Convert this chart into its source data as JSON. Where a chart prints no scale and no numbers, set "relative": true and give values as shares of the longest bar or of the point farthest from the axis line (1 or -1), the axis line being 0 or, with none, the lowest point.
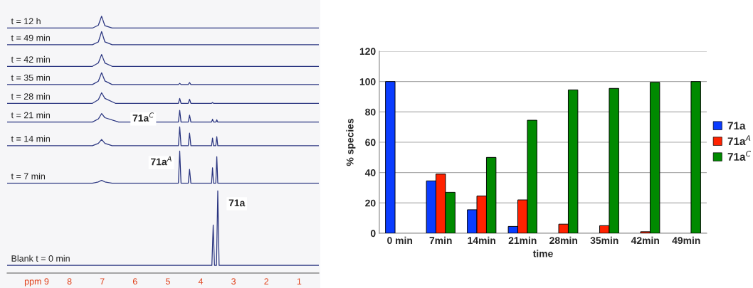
{
  "chart_data": [
    {
      "type": "line",
      "relative": true,
      "xlim": [
        9.9,
        0.4
      ],
      "tick_labels": "x",
      "xticks": [
        {
          "value": 9,
          "label": "ppm 9"
        },
        8,
        7,
        6,
        5,
        4,
        3,
        2,
        1
      ],
      "annotations": [
        {
          "text": "71a$^{C}$",
          "x": 5.75,
          "y": 0.6
        },
        {
          "text": "71a$^{A}$",
          "x": 5.2,
          "y": 0.43
        },
        {
          "text": "71a",
          "x": 2.9,
          "y": 0.27
        }
      ],
      "series": [
        {
          "name": "t = 12 h",
          "color": "#2a3580",
          "x": [
            9.9,
            7.3,
            7.12,
            7.02,
            6.92,
            6.7,
            0.4
          ],
          "values": [
            0.954,
            0.954,
            0.965,
            1.0,
            0.963,
            0.954,
            0.954
          ]
        },
        {
          "name": "t = 49 min",
          "color": "#2a3580",
          "x": [
            9.9,
            7.3,
            7.12,
            7.02,
            6.92,
            6.7,
            0.4
          ],
          "values": [
            0.889,
            0.889,
            0.9,
            0.94,
            0.9,
            0.889,
            0.889
          ]
        },
        {
          "name": "t = 42 min",
          "color": "#2a3580",
          "x": [
            9.9,
            7.3,
            7.12,
            7.02,
            6.92,
            6.7,
            0.4
          ],
          "values": [
            0.805,
            0.805,
            0.818,
            0.851,
            0.818,
            0.805,
            0.805
          ]
        },
        {
          "name": "t = 35 min",
          "color": "#2a3580",
          "x": [
            9.9,
            7.3,
            7.12,
            7.02,
            6.92,
            6.7,
            4.68,
            4.64,
            4.6,
            4.38,
            4.34,
            4.3,
            0.4
          ],
          "values": [
            0.734,
            0.734,
            0.747,
            0.78,
            0.748,
            0.734,
            0.734,
            0.739,
            0.734,
            0.734,
            0.742,
            0.734,
            0.734
          ]
        },
        {
          "name": "t = 28 min",
          "color": "#2a3580",
          "x": [
            9.9,
            7.3,
            7.12,
            7.02,
            6.92,
            6.6,
            4.68,
            4.64,
            4.6,
            4.38,
            4.34,
            4.3,
            3.67,
            3.64,
            3.61,
            0.4
          ],
          "values": [
            0.661,
            0.661,
            0.675,
            0.702,
            0.68,
            0.661,
            0.661,
            0.68,
            0.661,
            0.661,
            0.677,
            0.661,
            0.661,
            0.664,
            0.661,
            0.661
          ]
        },
        {
          "name": "t = 21 min",
          "color": "#2a3580",
          "x": [
            9.9,
            7.3,
            7.12,
            7.02,
            6.92,
            6.5,
            4.68,
            4.64,
            4.6,
            4.38,
            4.34,
            4.3,
            3.67,
            3.64,
            3.61,
            3.54,
            3.51,
            3.48,
            0.4
          ],
          "values": [
            0.588,
            0.588,
            0.6,
            0.621,
            0.605,
            0.588,
            0.588,
            0.634,
            0.588,
            0.588,
            0.615,
            0.588,
            0.588,
            0.599,
            0.588,
            0.588,
            0.597,
            0.588,
            0.588
          ]
        },
        {
          "name": "t = 14 min",
          "color": "#2a3580",
          "x": [
            9.9,
            7.3,
            7.12,
            7.02,
            6.92,
            6.7,
            4.68,
            4.64,
            4.6,
            4.38,
            4.34,
            4.3,
            3.67,
            3.64,
            3.61,
            3.54,
            3.51,
            3.48,
            0.4
          ],
          "values": [
            0.496,
            0.496,
            0.505,
            0.52,
            0.505,
            0.496,
            0.496,
            0.569,
            0.496,
            0.496,
            0.545,
            0.496,
            0.496,
            0.526,
            0.496,
            0.496,
            0.531,
            0.496,
            0.496
          ]
        },
        {
          "name": "t = 7 min",
          "color": "#2a3580",
          "x": [
            9.9,
            7.3,
            7.12,
            7.02,
            6.92,
            6.7,
            4.68,
            4.64,
            4.6,
            4.38,
            4.34,
            4.3,
            3.67,
            3.64,
            3.61,
            3.54,
            3.51,
            3.48,
            0.4
          ],
          "values": [
            0.35,
            0.35,
            0.355,
            0.361,
            0.355,
            0.35,
            0.35,
            0.475,
            0.35,
            0.35,
            0.404,
            0.35,
            0.35,
            0.41,
            0.35,
            0.35,
            0.453,
            0.35,
            0.35
          ]
        },
        {
          "name": "Blank t = 0 min",
          "color": "#2a3580",
          "x": [
            9.9,
            3.66,
            3.62,
            3.58,
            3.52,
            3.48,
            3.44,
            0.4
          ],
          "values": [
            0.03,
            0.03,
            0.187,
            0.03,
            0.03,
            0.32,
            0.03,
            0.03
          ]
        }
      ]
    },
    {
      "type": "bar",
      "categories": [
        "0 min",
        "7min",
        "14min",
        "21min",
        "28min",
        "35min",
        "42min",
        "49min"
      ],
      "xlabel": "time",
      "ylabel": "% species",
      "ylim": [
        0,
        120
      ],
      "yticks": [
        0,
        20,
        40,
        60,
        80,
        100,
        120
      ],
      "grid": "y",
      "legend": "right",
      "series": [
        {
          "name": "71a",
          "color": "#0a3cff",
          "values": [
            100,
            34.5,
            15.5,
            4.5,
            null,
            null,
            null,
            null
          ]
        },
        {
          "name": "71a$^{A}$",
          "color": "#ff2200",
          "values": [
            null,
            39,
            24.5,
            22,
            6,
            5,
            1,
            null
          ]
        },
        {
          "name": "71a$^{C}$",
          "color": "#008a00",
          "values": [
            null,
            27,
            50,
            74.5,
            94.5,
            95.5,
            99.5,
            100
          ]
        }
      ]
    }
  ]
}
